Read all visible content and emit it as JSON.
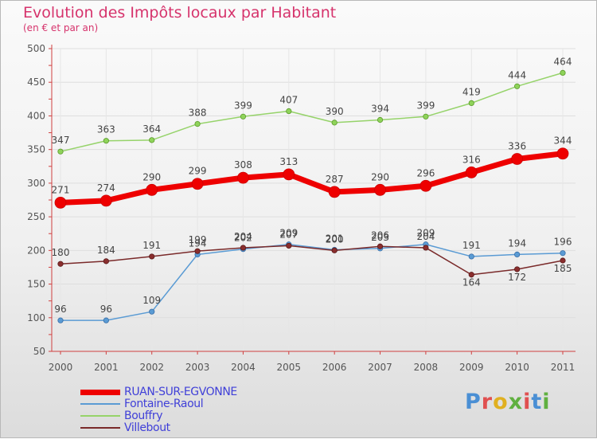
{
  "title": "Evolution des Impôts locaux par Habitant",
  "subtitle": "(en € et par an)",
  "logo_text": "Proxiti",
  "chart_data": {
    "type": "line",
    "title": "Evolution des Impôts locaux par Habitant",
    "subtitle": "(en € et par an)",
    "xlabel": "",
    "ylabel": "",
    "ylim": [
      50,
      500
    ],
    "yticks": [
      50,
      100,
      150,
      200,
      250,
      300,
      350,
      400,
      450,
      500
    ],
    "x": [
      "2000",
      "2001",
      "2002",
      "2003",
      "2004",
      "2005",
      "2006",
      "2007",
      "2008",
      "2009",
      "2010",
      "2011"
    ],
    "legend_position": "bottom-left",
    "series": [
      {
        "name": "RUAN-SUR-EGVONNE",
        "color": "#ee0000",
        "values": [
          271,
          274,
          290,
          299,
          308,
          313,
          287,
          290,
          296,
          316,
          336,
          344
        ]
      },
      {
        "name": "Fontaine-Raoul",
        "color": "#5a9bd4",
        "values": [
          96,
          96,
          109,
          194,
          202,
          209,
          201,
          203,
          209,
          191,
          194,
          196
        ]
      },
      {
        "name": "Bouffry",
        "color": "#96d36a",
        "values": [
          347,
          363,
          364,
          388,
          399,
          407,
          390,
          394,
          399,
          419,
          444,
          464
        ]
      },
      {
        "name": "Villebout",
        "color": "#7a2a2a",
        "values": [
          180,
          184,
          191,
          199,
          204,
          207,
          200,
          206,
          204,
          164,
          172,
          185
        ]
      }
    ]
  }
}
